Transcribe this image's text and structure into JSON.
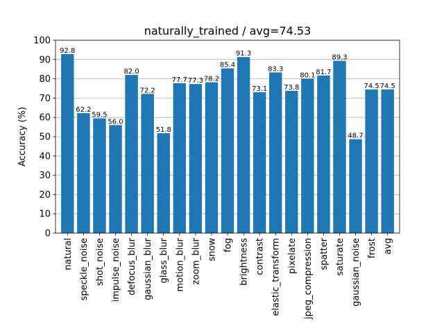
{
  "chart_data": {
    "type": "bar",
    "title": "naturally_trained / avg=74.53",
    "xlabel": "",
    "ylabel": "Accuracy (%)",
    "ylim": [
      0,
      100
    ],
    "yticks": [
      0,
      10,
      20,
      30,
      40,
      50,
      60,
      70,
      80,
      90,
      100
    ],
    "grid": "y",
    "bar_color": "#1f77b4",
    "categories": [
      "natural",
      "speckle_noise",
      "shot_noise",
      "impulse_noise",
      "defocus_blur",
      "gaussian_blur",
      "glass_blur",
      "motion_blur",
      "zoom_blur",
      "snow",
      "fog",
      "brightness",
      "contrast",
      "elastic_transform",
      "pixelate",
      "jpeg_compression",
      "spatter",
      "saturate",
      "gaussian_noise",
      "frost",
      "avg"
    ],
    "values": [
      92.8,
      62.2,
      59.5,
      56.0,
      82.0,
      72.2,
      51.8,
      77.7,
      77.3,
      78.2,
      85.4,
      91.3,
      73.1,
      83.3,
      73.8,
      80.1,
      81.7,
      89.3,
      48.7,
      74.5,
      74.5
    ],
    "data_labels": [
      "92.8",
      "62.2",
      "59.5",
      "56.0",
      "82.0",
      "72.2",
      "51.8",
      "77.7",
      "77.3",
      "78.2",
      "85.4",
      "91.3",
      "73.1",
      "83.3",
      "73.8",
      "80.1",
      "81.7",
      "89.3",
      "48.7",
      "74.5",
      "74.5"
    ]
  }
}
